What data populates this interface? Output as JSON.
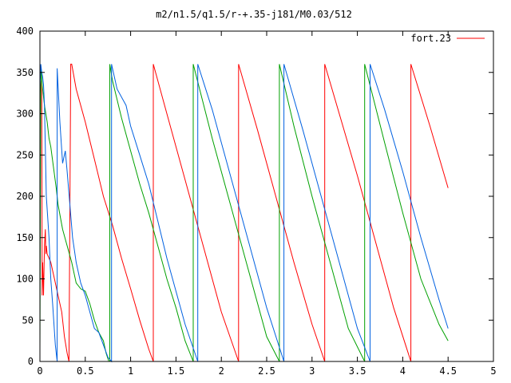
{
  "chart_data": {
    "type": "line",
    "title": "m2/n1.5/q1.5/r-+.35-j181/M0.03/512",
    "xlabel": "",
    "ylabel": "",
    "xlim": [
      0,
      5
    ],
    "ylim": [
      0,
      400
    ],
    "x_ticks": [
      0,
      0.5,
      1,
      1.5,
      2,
      2.5,
      3,
      3.5,
      4,
      4.5,
      5
    ],
    "x_tick_labels": [
      "0",
      "0.5",
      "1",
      "1.5",
      "2",
      "2.5",
      "3",
      "3.5",
      "4",
      "4.5",
      "5"
    ],
    "y_ticks": [
      0,
      50,
      100,
      150,
      200,
      250,
      300,
      350,
      400
    ],
    "y_tick_labels": [
      "0",
      "50",
      "100",
      "150",
      "200",
      "250",
      "300",
      "350",
      "400"
    ],
    "grid": false,
    "legend": "top-right",
    "series": [
      {
        "name": "fort.23",
        "color": "#ff0000",
        "x": [
          0,
          0.01,
          0.02,
          0.025,
          0.03,
          0.035,
          0.04,
          0.05,
          0.06,
          0.065,
          0.07,
          0.08,
          0.1,
          0.12,
          0.14,
          0.16,
          0.2,
          0.24,
          0.27,
          0.3,
          0.32,
          0.34,
          0.35,
          0.35,
          0.4,
          0.5,
          0.6,
          0.7,
          0.8,
          0.9,
          1.0,
          1.1,
          1.2,
          1.25,
          1.25,
          1.4,
          1.6,
          1.8,
          2.0,
          2.19,
          2.19,
          2.4,
          2.6,
          2.8,
          3.0,
          3.14,
          3.14,
          3.3,
          3.5,
          3.7,
          3.9,
          4.09,
          4.09,
          4.3,
          4.5
        ],
        "y": [
          330,
          340,
          325,
          80,
          120,
          100,
          80,
          140,
          160,
          130,
          140,
          130,
          125,
          120,
          110,
          100,
          80,
          60,
          30,
          10,
          0,
          360,
          360,
          360,
          330,
          290,
          245,
          200,
          165,
          125,
          88,
          50,
          15,
          0,
          360,
          300,
          220,
          140,
          60,
          0,
          360,
          280,
          200,
          120,
          45,
          0,
          360,
          300,
          225,
          145,
          65,
          0,
          360,
          285,
          210
        ]
      },
      {
        "name": "",
        "color": "#00a000",
        "x": [
          0,
          0.01,
          0.03,
          0.05,
          0.08,
          0.1,
          0.12,
          0.15,
          0.18,
          0.2,
          0.25,
          0.3,
          0.35,
          0.4,
          0.45,
          0.5,
          0.55,
          0.6,
          0.65,
          0.7,
          0.73,
          0.76,
          0.77,
          0.77,
          0.8,
          0.9,
          1.0,
          1.1,
          1.2,
          1.3,
          1.4,
          1.5,
          1.6,
          1.69,
          1.69,
          1.9,
          2.1,
          2.3,
          2.5,
          2.64,
          2.64,
          2.8,
          3.0,
          3.2,
          3.4,
          3.58,
          3.58,
          3.8,
          4.0,
          4.2,
          4.4,
          4.5
        ],
        "y": [
          15,
          355,
          330,
          310,
          290,
          270,
          260,
          235,
          210,
          190,
          160,
          140,
          120,
          95,
          88,
          85,
          70,
          50,
          35,
          25,
          10,
          0,
          0,
          360,
          340,
          295,
          255,
          215,
          180,
          140,
          100,
          65,
          25,
          0,
          360,
          270,
          190,
          110,
          30,
          0,
          360,
          285,
          200,
          120,
          40,
          0,
          360,
          265,
          180,
          100,
          45,
          25
        ]
      },
      {
        "name": "",
        "color": "#0060e0",
        "x": [
          0,
          0.01,
          0.02,
          0.03,
          0.04,
          0.05,
          0.07,
          0.1,
          0.12,
          0.14,
          0.17,
          0.19,
          0.19,
          0.22,
          0.25,
          0.28,
          0.3,
          0.33,
          0.36,
          0.4,
          0.45,
          0.5,
          0.6,
          0.65,
          0.7,
          0.75,
          0.79,
          0.79,
          0.85,
          0.95,
          1.0,
          1.1,
          1.2,
          1.3,
          1.4,
          1.5,
          1.6,
          1.74,
          1.74,
          1.9,
          2.1,
          2.3,
          2.5,
          2.69,
          2.69,
          2.9,
          3.1,
          3.3,
          3.5,
          3.64,
          3.64,
          3.8,
          4.0,
          4.2,
          4.4,
          4.5
        ],
        "y": [
          330,
          360,
          350,
          345,
          335,
          310,
          200,
          150,
          100,
          70,
          20,
          0,
          355,
          290,
          240,
          255,
          230,
          190,
          150,
          120,
          95,
          80,
          40,
          35,
          20,
          5,
          0,
          360,
          330,
          310,
          285,
          250,
          215,
          170,
          125,
          85,
          45,
          0,
          360,
          305,
          225,
          145,
          65,
          0,
          360,
          280,
          200,
          120,
          40,
          0,
          360,
          305,
          230,
          150,
          75,
          40
        ]
      }
    ]
  }
}
